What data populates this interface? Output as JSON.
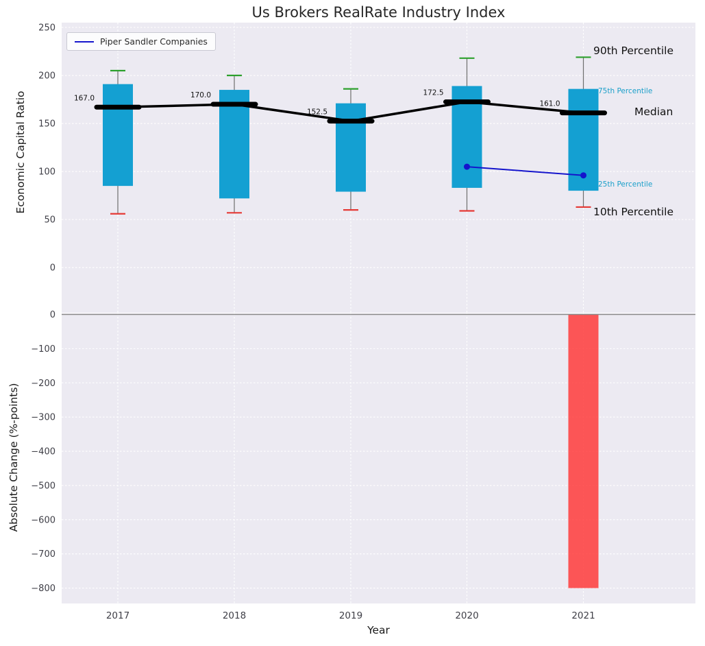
{
  "chart_data": {
    "type": "bar",
    "title": "Us Brokers RealRate Industry Index",
    "xlabel": "Year",
    "categories": [
      "2017",
      "2018",
      "2019",
      "2020",
      "2021"
    ],
    "colors": {
      "box": "#14a0d2",
      "p90_cap": "#2ca02c",
      "p10_cap": "#e53935",
      "median": "#000000",
      "bar_negative": "#ff3b3b",
      "annotation_accent": "#1a9fc9",
      "panel_background": "#eceaf2"
    },
    "panels": [
      {
        "ylabel": "Economic Capital Ratio",
        "yticks": [
          250,
          200,
          150,
          100,
          50,
          0
        ],
        "ylim": [
          -47,
          255
        ],
        "grid": true,
        "boxes": [
          {
            "year": "2017",
            "p10": 56,
            "p25": 85,
            "median": 167.0,
            "p75": 191,
            "p90": 205
          },
          {
            "year": "2018",
            "p10": 57,
            "p25": 72,
            "median": 170.0,
            "p75": 185,
            "p90": 200
          },
          {
            "year": "2019",
            "p10": 60,
            "p25": 79,
            "median": 152.5,
            "p75": 171,
            "p90": 186
          },
          {
            "year": "2020",
            "p10": 59,
            "p25": 83,
            "median": 172.5,
            "p75": 189,
            "p90": 218
          },
          {
            "year": "2021",
            "p10": 63,
            "p25": 80,
            "median": 161.0,
            "p75": 186,
            "p90": 219
          }
        ],
        "median_labels": [
          "167.0",
          "170.0",
          "152.5",
          "172.5",
          "161.0"
        ],
        "series": [
          {
            "name": "Piper Sandler Companies",
            "x": [
              "2020",
              "2021"
            ],
            "values": [
              105,
              96
            ],
            "color": "#1414cc"
          }
        ],
        "annotations": [
          {
            "label": "90th Percentile",
            "style": "large-dark"
          },
          {
            "label": "75th Percentile",
            "style": "small-accent"
          },
          {
            "label": "Median",
            "style": "large-dark"
          },
          {
            "label": "25th Percentile",
            "style": "small-accent"
          },
          {
            "label": "10th Percentile",
            "style": "large-dark"
          }
        ],
        "legend_position": "upper-left"
      },
      {
        "ylabel": "Absolute Change (%-points)",
        "yticks": [
          0,
          -100,
          -200,
          -300,
          -400,
          -500,
          -600,
          -700,
          -800
        ],
        "ylim": [
          -845,
          3
        ],
        "grid": true,
        "bars": [
          {
            "year": "2021",
            "value": -800
          }
        ]
      }
    ]
  }
}
